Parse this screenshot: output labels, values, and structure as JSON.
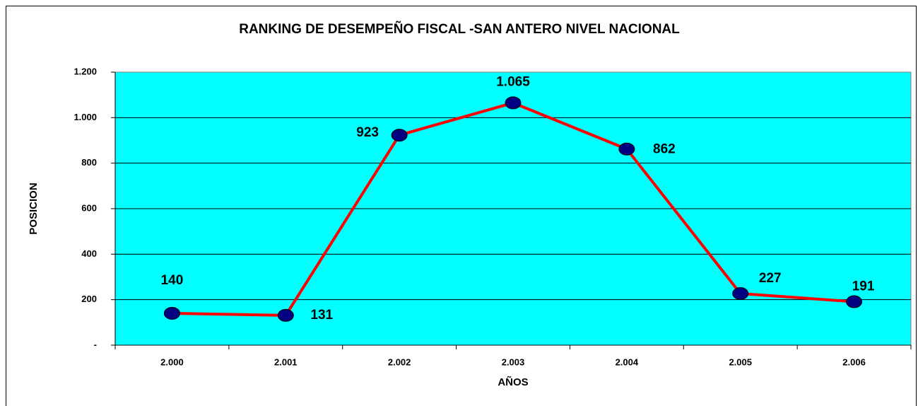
{
  "chart_data": {
    "type": "line",
    "title": "RANKING DE DESEMPEÑO FISCAL -SAN ANTERO NIVEL NACIONAL",
    "x_label": "AÑOS",
    "y_label": "POSICION",
    "categories": [
      "2.000",
      "2.001",
      "2.002",
      "2.003",
      "2.004",
      "2.005",
      "2.006"
    ],
    "series": [
      {
        "name": "POSICION",
        "color": "#ff0000",
        "marker_color": "#000080",
        "values": [
          140,
          131,
          923,
          1065,
          862,
          227,
          191
        ],
        "value_labels": [
          "140",
          "131",
          "923",
          "1.065",
          "862",
          "227",
          "191"
        ]
      }
    ],
    "ylim": [
      0,
      1200
    ],
    "yticks": [
      {
        "value": 0,
        "label": "-"
      },
      200,
      400,
      600,
      800,
      {
        "value": 1000,
        "label": "1.000"
      },
      {
        "value": 1200,
        "label": "1.200"
      }
    ],
    "grid": true,
    "plot_background": "#00ffff"
  }
}
